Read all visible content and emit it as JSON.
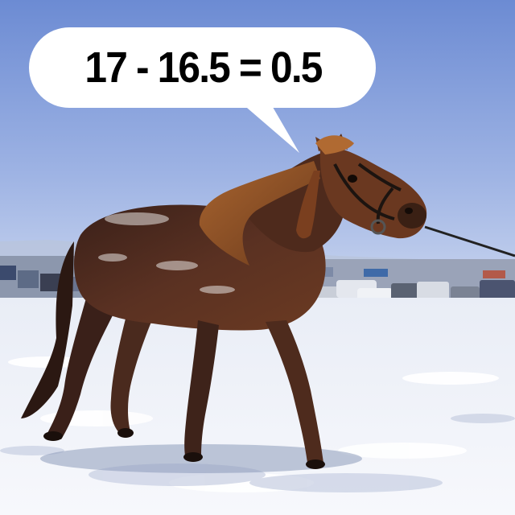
{
  "meme": {
    "caption": "17 - 16.5 = 0.5"
  },
  "photo": {
    "subject": "horse-icon",
    "colors": {
      "sky_top": "#6f8fd6",
      "sky_bottom": "#c7d4ef",
      "snow": "#f4f6fb",
      "coat": "#4a2a1e",
      "mane": "#8a4a26"
    }
  }
}
